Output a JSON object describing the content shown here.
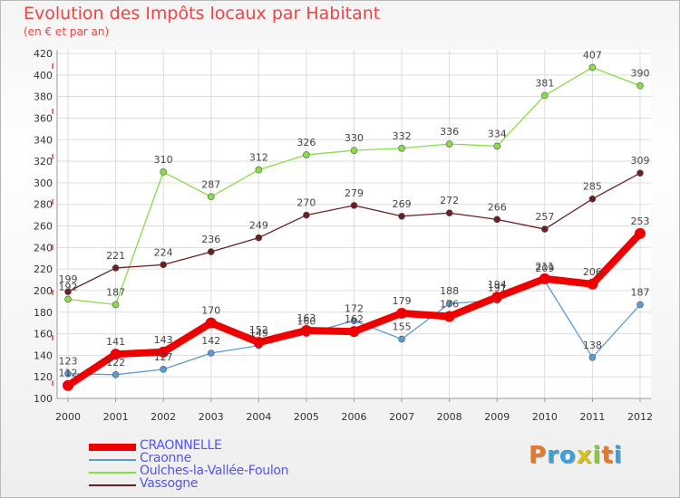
{
  "title": "Evolution des Impôts locaux par Habitant",
  "subtitle": "(en € et par an)",
  "logo": [
    "P",
    "r",
    "o",
    "x",
    "i",
    "t",
    "i"
  ],
  "logo_colors": [
    "#e6782b",
    "#3aa0d8",
    "#3aa0d8",
    "#d6c21a",
    "#8cc63f",
    "#e6782b",
    "#3aa0d8"
  ],
  "chart_data": {
    "type": "line",
    "x": [
      "2000",
      "2001",
      "2002",
      "2003",
      "2004",
      "2005",
      "2006",
      "2007",
      "2008",
      "2009",
      "2010",
      "2011",
      "2012"
    ],
    "ylim": [
      100,
      420
    ],
    "yticks": [
      100,
      120,
      140,
      160,
      180,
      200,
      220,
      240,
      260,
      280,
      300,
      320,
      340,
      360,
      380,
      400,
      420
    ],
    "grid": true,
    "legend_position": "bottom-left",
    "series": [
      {
        "name": "CRAONNELLE",
        "color": "#ee0000",
        "values": [
          112,
          141,
          143,
          170,
          152,
          163,
          162,
          179,
          176,
          194,
          211,
          206,
          253
        ]
      },
      {
        "name": "Craonne",
        "color": "#5b9bd5",
        "values": [
          123,
          122,
          127,
          142,
          149,
          160,
          172,
          155,
          188,
          191,
          209,
          138,
          187
        ]
      },
      {
        "name": "Oulches-la-Vallée-Foulon",
        "color": "#88dd44",
        "values": [
          192,
          187,
          310,
          287,
          312,
          326,
          330,
          332,
          336,
          334,
          381,
          407,
          390
        ]
      },
      {
        "name": "Vassogne",
        "color": "#6b1f1f",
        "values": [
          199,
          221,
          224,
          236,
          249,
          270,
          279,
          269,
          272,
          266,
          257,
          285,
          309
        ]
      }
    ]
  }
}
